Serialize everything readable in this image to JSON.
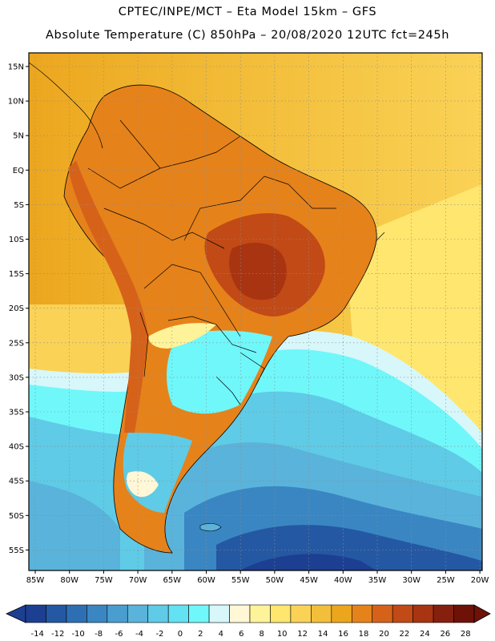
{
  "header": {
    "line1": "CPTEC/INPE/MCT  –   Eta Model 15km  –  GFS",
    "line2": "Absolute Temperature (C) 850hPa  –  20/08/2020  12UTC  fct=245h"
  },
  "map": {
    "lon_labels": [
      "85W",
      "80W",
      "75W",
      "70W",
      "65W",
      "60W",
      "55W",
      "50W",
      "45W",
      "40W",
      "35W",
      "30W",
      "25W",
      "20W"
    ],
    "lat_labels": [
      "15N",
      "10N",
      "5N",
      "EQ",
      "5S",
      "10S",
      "15S",
      "20S",
      "25S",
      "30S",
      "35S",
      "40S",
      "45S",
      "50S",
      "55S"
    ]
  },
  "colors": {
    "scale": [
      "#1c3f91",
      "#2458a3",
      "#2e6fb4",
      "#3a86c2",
      "#4a9dcf",
      "#5ab3db",
      "#5fcbe6",
      "#62e2f2",
      "#70f7fa",
      "#d7f7fa",
      "#fff7d6",
      "#fff39a",
      "#ffe66e",
      "#fad256",
      "#f3be3a",
      "#eca61e",
      "#e6821a",
      "#d6621a",
      "#c24a16",
      "#a83412",
      "#86200e",
      "#6e1208"
    ],
    "ocean_bg": "#f3c13a"
  },
  "legend": {
    "ticks": [
      "-14",
      "-12",
      "-10",
      "-8",
      "-6",
      "-4",
      "-2",
      "0",
      "2",
      "4",
      "6",
      "8",
      "10",
      "12",
      "14",
      "16",
      "18",
      "20",
      "22",
      "24",
      "26",
      "28"
    ]
  }
}
